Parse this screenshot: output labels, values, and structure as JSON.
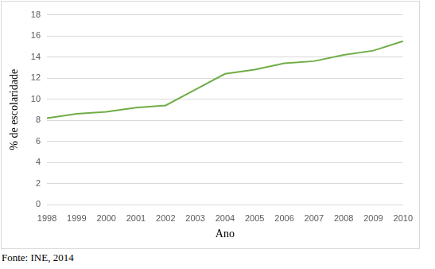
{
  "chart_data": {
    "type": "line",
    "x_label": "Ano",
    "y_label": "% de escolaridade",
    "source": "Fonte: INE, 2014",
    "categories": [
      "1998",
      "1999",
      "2000",
      "2001",
      "2002",
      "2003",
      "2004",
      "2005",
      "2006",
      "2007",
      "2008",
      "2009",
      "2010"
    ],
    "values": [
      8.2,
      8.6,
      8.8,
      9.2,
      9.4,
      10.9,
      12.4,
      12.8,
      13.4,
      13.6,
      14.2,
      14.6,
      15.5
    ],
    "color": "#70ad47",
    "ylim": [
      0,
      18
    ],
    "yticks": [
      0,
      2,
      4,
      6,
      8,
      10,
      12,
      14,
      16,
      18
    ],
    "grid": true
  }
}
